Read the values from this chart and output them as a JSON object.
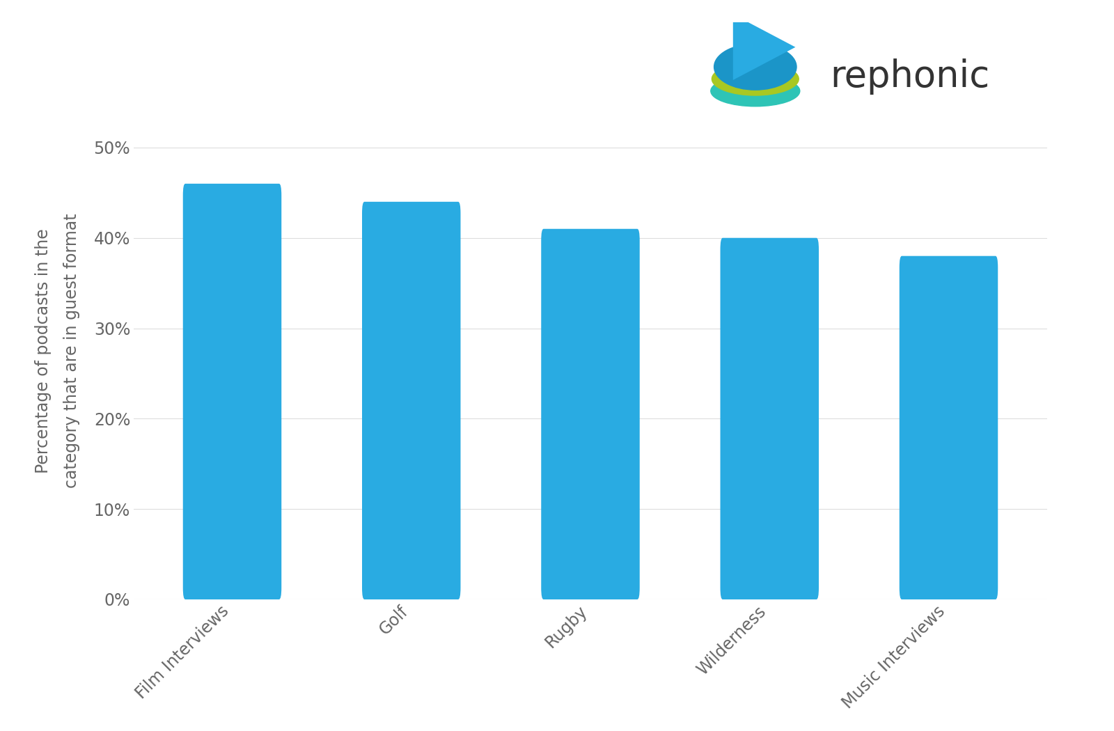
{
  "categories": [
    "Film Interviews",
    "Golf",
    "Rugby",
    "Wilderness",
    "Music Interviews"
  ],
  "values": [
    0.46,
    0.44,
    0.41,
    0.4,
    0.38
  ],
  "bar_color": "#29ABE2",
  "ylabel": "Percentage of podcasts in the\ncategory that are in guest format",
  "ylim": [
    0,
    0.55
  ],
  "yticks": [
    0.0,
    0.1,
    0.2,
    0.3,
    0.4,
    0.5
  ],
  "ytick_labels": [
    "0%",
    "10%",
    "20%",
    "30%",
    "40%",
    "50%"
  ],
  "background_color": "#ffffff",
  "grid_color": "#dddddd",
  "logo_text": "rephonic",
  "ylabel_fontsize": 17,
  "tick_fontsize": 17,
  "xlabel_fontsize": 17,
  "text_color": "#666666"
}
